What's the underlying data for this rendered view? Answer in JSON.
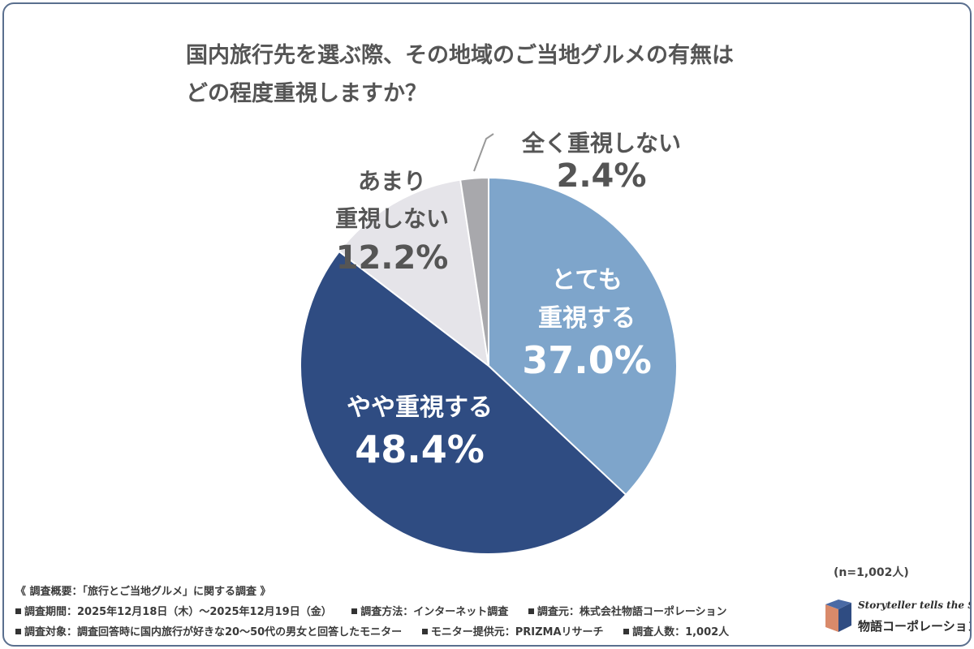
{
  "chart_data": {
    "type": "pie",
    "title_lines": [
      "国内旅行先を選ぶ際、その地域のご当地グルメの有無は",
      "どの程度重視しますか？"
    ],
    "slices": [
      {
        "name_lines": [
          "とても",
          "重視する"
        ],
        "value": 37.0,
        "label": "37.0%",
        "color": "#7ea5cb"
      },
      {
        "name_lines": [
          "やや重視する"
        ],
        "value": 48.4,
        "label": "48.4%",
        "color": "#2f4c82"
      },
      {
        "name_lines": [
          "あまり",
          "重視しない"
        ],
        "value": 12.2,
        "label": "12.2%",
        "color": "#e5e4e9"
      },
      {
        "name_lines": [
          "全く重視しない"
        ],
        "value": 2.4,
        "label": "2.4%",
        "color": "#a8a8ac"
      }
    ],
    "start": "12 o'clock",
    "direction": "clockwise",
    "legend": "none",
    "sample_size": "(n=1,002人)"
  },
  "notes": {
    "line1": "《 調査概要：「旅行とご当地グルメ」に関する調査 》",
    "line2": [
      "調査期間：2025年12月18日（木）〜2025年12月19日（金）",
      "調査方法：インターネット調査",
      "調査元：株式会社物語コーポレーション"
    ],
    "line3": [
      "調査対象：調査回答時に国内旅行が好きな20〜50代の男女と回答したモニター",
      "モニター提供元：PRIZMAリサーチ",
      "調査人数：1,002人"
    ]
  },
  "logo": {
    "tagline": "Storyteller tells the Story",
    "name": "物語コーポレーション",
    "icon": "open-book-icon"
  },
  "colors": {
    "text_dark": "#555555",
    "text_light": "#ffffff",
    "frame": "#5a6f8e"
  }
}
